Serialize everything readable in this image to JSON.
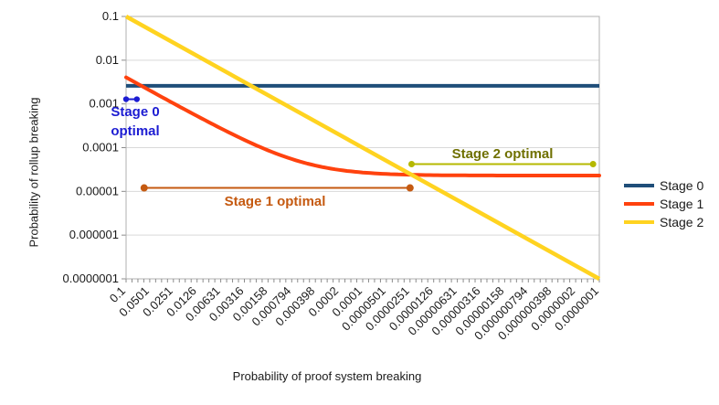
{
  "chart_data": {
    "type": "line",
    "title": "",
    "xlabel": "Probability of proof system breaking",
    "ylabel": "Probability of rollup breaking",
    "x_scale": "log",
    "y_scale": "log",
    "xlim": [
      0.1,
      1e-07
    ],
    "ylim": [
      0.1,
      1e-07
    ],
    "grid": "horizontal",
    "x_tick_labels": [
      "0.1",
      "0.0501",
      "0.0251",
      "0.0126",
      "0.00631",
      "0.00316",
      "0.00158",
      "0.000794",
      "0.000398",
      "0.0002",
      "0.0001",
      "0.0000501",
      "0.0000251",
      "0.0000126",
      "0.00000631",
      "0.00000316",
      "0.00000158",
      "0.000000794",
      "0.000000398",
      "0.0000002",
      "0.0000001"
    ],
    "y_tick_labels": [
      "0.1",
      "0.01",
      "0.001",
      "0.0001",
      "0.00001",
      "0.000001",
      "0.0000001"
    ],
    "x": [
      0.1,
      0.0501,
      0.0251,
      0.0126,
      0.00631,
      0.00316,
      0.00158,
      0.000794,
      0.000398,
      0.0002,
      0.0001,
      5.01e-05,
      2.51e-05,
      1.26e-05,
      6.31e-06,
      3.16e-06,
      1.58e-06,
      7.94e-07,
      3.98e-07,
      2e-07,
      1e-07
    ],
    "series": [
      {
        "name": "Stage 0",
        "color": "#1F4E79",
        "model": "constant",
        "constant": 0.0026,
        "width": 4,
        "values": [
          0.0026,
          0.0026,
          0.0026,
          0.0026,
          0.0026,
          0.0026,
          0.0026,
          0.0026,
          0.0026,
          0.0026,
          0.0026,
          0.0026,
          0.0026,
          0.0026,
          0.0026,
          0.0026,
          0.0026,
          0.0026,
          0.0026,
          0.0026,
          0.0026
        ]
      },
      {
        "name": "Stage 1",
        "color": "#FF420E",
        "model": "floor_plus_linear",
        "floor": 2.3e-05,
        "slope": 0.0402,
        "width": 4,
        "values": [
          0.00404,
          0.00204,
          0.00103,
          0.00053,
          0.000277,
          0.00015,
          8.65e-05,
          5.49e-05,
          3.9e-05,
          3.1e-05,
          2.7e-05,
          2.5e-05,
          2.4e-05,
          2.35e-05,
          2.33e-05,
          2.31e-05,
          2.31e-05,
          2.3e-05,
          2.3e-05,
          2.3e-05,
          2.3e-05
        ]
      },
      {
        "name": "Stage 2",
        "color": "#FFD320",
        "model": "identity",
        "width": 4.5,
        "values": [
          0.1,
          0.0501,
          0.0251,
          0.0126,
          0.00631,
          0.00316,
          0.00158,
          0.000794,
          0.000398,
          0.0002,
          0.0001,
          5.01e-05,
          2.51e-05,
          1.26e-05,
          6.31e-06,
          3.16e-06,
          1.58e-06,
          7.94e-07,
          3.98e-07,
          2e-07,
          1e-07
        ]
      }
    ],
    "annotations": [
      {
        "id": "stage-0-optimal",
        "label_lines": [
          "Stage 0",
          "optimal"
        ],
        "text_color": "#1C1CD2",
        "line_color": "#1C1CD2",
        "x_range": [
          0.1,
          0.073
        ],
        "y": 0.00128,
        "dot_r": 3.2
      },
      {
        "id": "stage-1-optimal",
        "label": "Stage 1 optimal",
        "text_color": "#C55A11",
        "line_color": "#C55A11",
        "x_range": [
          0.059,
          2.51e-05
        ],
        "y": 1.2e-05,
        "dot_r": 4
      },
      {
        "id": "stage-2-optimal",
        "label": "Stage 2 optimal",
        "text_color": "#6F7000",
        "line_color": "#B5B800",
        "x_range": [
          2.4e-05,
          1.2e-07
        ],
        "y": 4.2e-05,
        "dot_r": 3.5
      }
    ],
    "legend": {
      "position": "right",
      "entries": [
        {
          "label": "Stage 0",
          "color": "#1F4E79"
        },
        {
          "label": "Stage 1",
          "color": "#FF420E"
        },
        {
          "label": "Stage 2",
          "color": "#FFD320"
        }
      ]
    }
  }
}
